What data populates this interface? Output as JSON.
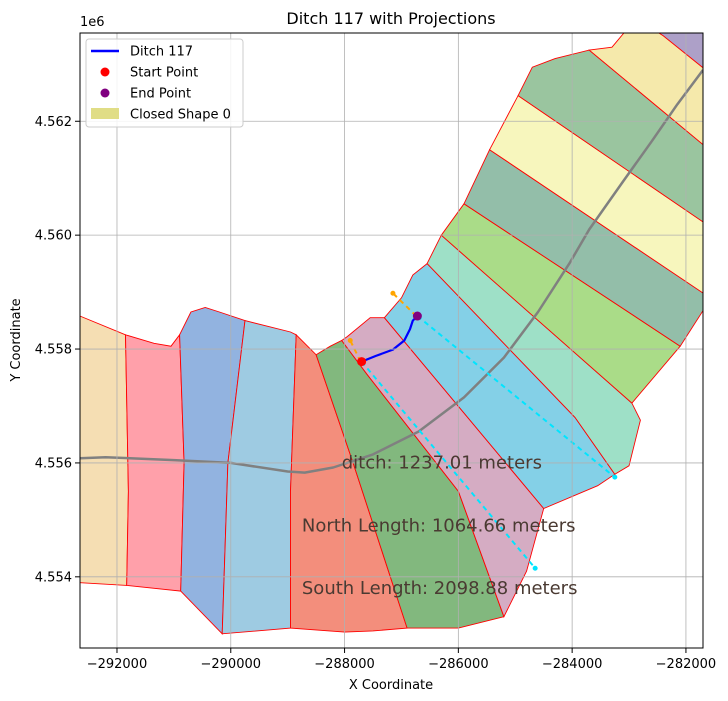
{
  "chart_data": {
    "type": "map",
    "title": "Ditch 117 with Projections",
    "xlabel": "X Coordinate",
    "ylabel": "Y Coordinate",
    "xlim": [
      -292650,
      -281700
    ],
    "ylim": [
      4552750,
      4563550
    ],
    "y_offset_label": "1e6",
    "grid": true,
    "x_ticks": [
      {
        "value": -292000,
        "label": "−292000"
      },
      {
        "value": -290000,
        "label": "−290000"
      },
      {
        "value": -288000,
        "label": "−288000"
      },
      {
        "value": -286000,
        "label": "−286000"
      },
      {
        "value": -284000,
        "label": "−284000"
      },
      {
        "value": -282000,
        "label": "−282000"
      }
    ],
    "y_ticks": [
      {
        "value": 4554000,
        "label": "4.554"
      },
      {
        "value": 4556000,
        "label": "4.556"
      },
      {
        "value": 4558000,
        "label": "4.558"
      },
      {
        "value": 4560000,
        "label": "4.560"
      },
      {
        "value": 4562000,
        "label": "4.562"
      }
    ],
    "legend": {
      "placement": "upper-left",
      "entries": [
        {
          "label": "Ditch 117",
          "kind": "line",
          "color": "#0000ff"
        },
        {
          "label": "Start Point",
          "kind": "point",
          "color": "#ff0000"
        },
        {
          "label": "End Point",
          "kind": "point",
          "color": "#800080"
        },
        {
          "label": "Closed Shape 0",
          "kind": "patch",
          "color": "#e0dd86"
        }
      ]
    },
    "polygons": [
      {
        "color": "#f5deb3",
        "points": [
          [
            -292700,
            4558600
          ],
          [
            -291850,
            4558250
          ],
          [
            -291800,
            4555500
          ],
          [
            -291830,
            4553850
          ],
          [
            -292700,
            4553900
          ]
        ]
      },
      {
        "color": "#ffa0aa",
        "points": [
          [
            -291850,
            4558250
          ],
          [
            -291350,
            4558100
          ],
          [
            -291050,
            4558050
          ],
          [
            -290900,
            4558250
          ],
          [
            -290820,
            4556000
          ],
          [
            -290880,
            4553750
          ],
          [
            -291830,
            4553850
          ],
          [
            -291800,
            4555500
          ]
        ]
      },
      {
        "color": "#92b3e0",
        "points": [
          [
            -290900,
            4558250
          ],
          [
            -290700,
            4558650
          ],
          [
            -290450,
            4558730
          ],
          [
            -290200,
            4558650
          ],
          [
            -289750,
            4558500
          ],
          [
            -290050,
            4556000
          ],
          [
            -290150,
            4553000
          ],
          [
            -290880,
            4553750
          ],
          [
            -290820,
            4556000
          ]
        ]
      },
      {
        "color": "#9ecbe2",
        "points": [
          [
            -289750,
            4558500
          ],
          [
            -289350,
            4558400
          ],
          [
            -288950,
            4558300
          ],
          [
            -288850,
            4558250
          ],
          [
            -288950,
            4555500
          ],
          [
            -288950,
            4553100
          ],
          [
            -290150,
            4553000
          ],
          [
            -290050,
            4556000
          ]
        ]
      },
      {
        "color": "#f38e7c",
        "points": [
          [
            -288850,
            4558250
          ],
          [
            -288700,
            4558100
          ],
          [
            -288500,
            4557900
          ],
          [
            -287850,
            4556000
          ],
          [
            -286900,
            4553100
          ],
          [
            -287500,
            4553050
          ],
          [
            -288000,
            4553030
          ],
          [
            -288950,
            4553100
          ],
          [
            -288950,
            4555500
          ]
        ]
      },
      {
        "color": "#82b87e",
        "points": [
          [
            -288500,
            4557900
          ],
          [
            -288250,
            4558050
          ],
          [
            -288050,
            4558150
          ],
          [
            -287600,
            4557550
          ],
          [
            -286000,
            4555500
          ],
          [
            -285200,
            4553300
          ],
          [
            -286000,
            4553100
          ],
          [
            -286900,
            4553100
          ],
          [
            -287850,
            4556000
          ]
        ]
      },
      {
        "color": "#d5acc3",
        "points": [
          [
            -288050,
            4558150
          ],
          [
            -287950,
            4558220
          ],
          [
            -287550,
            4558550
          ],
          [
            -287300,
            4558550
          ],
          [
            -284500,
            4555200
          ],
          [
            -284800,
            4554100
          ],
          [
            -285200,
            4553300
          ],
          [
            -286000,
            4555500
          ],
          [
            -287600,
            4557550
          ]
        ]
      },
      {
        "color": "#84d0e7",
        "points": [
          [
            -287300,
            4558550
          ],
          [
            -287000,
            4558900
          ],
          [
            -286800,
            4559300
          ],
          [
            -286550,
            4559500
          ],
          [
            -283950,
            4556800
          ],
          [
            -283250,
            4555800
          ],
          [
            -283550,
            4555600
          ],
          [
            -284500,
            4555200
          ]
        ]
      },
      {
        "color": "#9ee0c7",
        "points": [
          [
            -286550,
            4559500
          ],
          [
            -286300,
            4560000
          ],
          [
            -282950,
            4557050
          ],
          [
            -282800,
            4556750
          ],
          [
            -283000,
            4555950
          ],
          [
            -283250,
            4555800
          ],
          [
            -283950,
            4556800
          ]
        ]
      },
      {
        "color": "#aadc88",
        "points": [
          [
            -286300,
            4560000
          ],
          [
            -285900,
            4560550
          ],
          [
            -282100,
            4558050
          ],
          [
            -282950,
            4557050
          ]
        ]
      },
      {
        "color": "#93bea9",
        "points": [
          [
            -285900,
            4560550
          ],
          [
            -285450,
            4561500
          ],
          [
            -281650,
            4558950
          ],
          [
            -281650,
            4558750
          ],
          [
            -282100,
            4558050
          ]
        ]
      },
      {
        "color": "#f7f6bd",
        "points": [
          [
            -285450,
            4561500
          ],
          [
            -284950,
            4562450
          ],
          [
            -281650,
            4560200
          ],
          [
            -281650,
            4558950
          ]
        ]
      },
      {
        "color": "#9ac59f",
        "points": [
          [
            -284950,
            4562450
          ],
          [
            -284700,
            4562950
          ],
          [
            -284300,
            4563100
          ],
          [
            -283700,
            4563250
          ],
          [
            -281650,
            4561550
          ],
          [
            -281650,
            4560200
          ]
        ]
      },
      {
        "color": "#f5e9ab",
        "points": [
          [
            -283700,
            4563250
          ],
          [
            -283300,
            4563300
          ],
          [
            -283050,
            4563600
          ],
          [
            -282900,
            4564000
          ],
          [
            -282000,
            4564000
          ],
          [
            -281650,
            4563800
          ],
          [
            -281650,
            4561550
          ]
        ]
      },
      {
        "color": "#ada0c8",
        "points": [
          [
            -282900,
            4564000
          ],
          [
            -282550,
            4563600
          ],
          [
            -282400,
            4563500
          ],
          [
            -281650,
            4562900
          ],
          [
            -281650,
            4564000
          ]
        ]
      }
    ],
    "centerline": {
      "color": "#808080",
      "points": [
        [
          -292700,
          4556080
        ],
        [
          -292200,
          4556100
        ],
        [
          -291000,
          4556050
        ],
        [
          -290000,
          4556000
        ],
        [
          -289000,
          4555850
        ],
        [
          -288700,
          4555830
        ],
        [
          -288200,
          4555920
        ],
        [
          -287500,
          4556150
        ],
        [
          -286700,
          4556550
        ],
        [
          -285900,
          4557150
        ],
        [
          -285200,
          4557850
        ],
        [
          -284600,
          4558650
        ],
        [
          -284050,
          4559500
        ],
        [
          -283700,
          4560100
        ],
        [
          -283100,
          4560950
        ],
        [
          -282600,
          4561650
        ],
        [
          -282150,
          4562300
        ],
        [
          -281700,
          4562900
        ]
      ]
    },
    "ditch": {
      "name": "Ditch 117",
      "color": "#0000ff",
      "points": [
        [
          -287700,
          4557780
        ],
        [
          -287450,
          4557880
        ],
        [
          -287150,
          4557990
        ],
        [
          -286950,
          4558150
        ],
        [
          -286850,
          4558350
        ],
        [
          -286800,
          4558500
        ],
        [
          -286720,
          4558580
        ]
      ]
    },
    "start_point": {
      "x": -287700,
      "y": 4557780
    },
    "end_point": {
      "x": -286720,
      "y": 4558580
    },
    "north_projection": {
      "color": "#ffa500",
      "points": [
        [
          -287720,
          4557780
        ],
        [
          -287900,
          4558150
        ]
      ]
    },
    "north_projection_2": {
      "color": "#ffa500",
      "points": [
        [
          -286740,
          4558580
        ],
        [
          -287150,
          4558980
        ]
      ]
    },
    "south_projection": {
      "color": "#00e5ff",
      "points": [
        [
          -287700,
          4557780
        ],
        [
          -284650,
          4554150
        ]
      ]
    },
    "south_projection_2": {
      "color": "#00e5ff",
      "points": [
        [
          -286720,
          4558580
        ],
        [
          -283250,
          4555750
        ]
      ]
    },
    "annotations": [
      {
        "text": "ditch: 1237.01 meters",
        "x": -288050,
        "y": 4555900
      },
      {
        "text": "North Length: 1064.66 meters",
        "x": -288750,
        "y": 4554800
      },
      {
        "text": "South Length: 2098.88 meters",
        "x": -288750,
        "y": 4553700
      }
    ]
  }
}
